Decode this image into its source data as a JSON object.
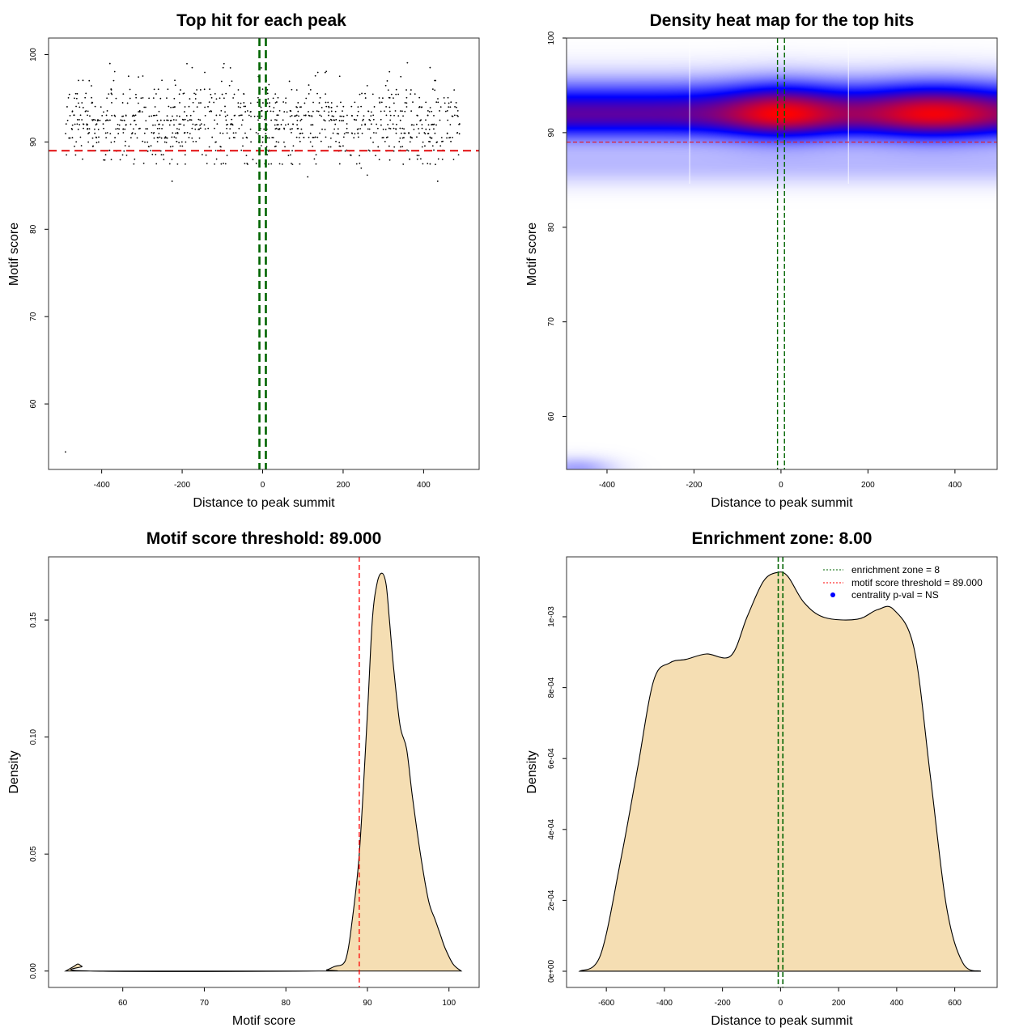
{
  "chart_data": [
    {
      "type": "scatter",
      "title": "Top hit for each peak",
      "xlabel": "Distance to peak summit",
      "ylabel": "Motif score",
      "xlim": [
        -532,
        538
      ],
      "ylim": [
        52.5,
        101.9
      ],
      "xticks": [
        -400,
        -200,
        0,
        200,
        400
      ],
      "yticks": [
        60,
        70,
        80,
        90,
        100
      ],
      "threshold_line": 89,
      "enrichment_lines": [
        -8,
        8
      ],
      "points_generator": {
        "n": 1000,
        "x_range": [
          -490,
          490
        ],
        "y_mean": 92.3,
        "y_sd": 2.4,
        "y_min": 87.6,
        "y_max": 100
      },
      "outliers": [
        [
          -490,
          54.5
        ],
        [
          -225,
          85.5
        ],
        [
          435,
          85.5
        ],
        [
          112,
          86
        ],
        [
          260,
          86.2
        ],
        [
          245,
          87
        ]
      ]
    },
    {
      "type": "heatmap",
      "title": "Density heat map for the top hits",
      "xlabel": "Distance to peak summit",
      "ylabel": "Motif score",
      "xlim": [
        -493,
        497
      ],
      "ylim": [
        54.4,
        100
      ],
      "xticks": [
        -400,
        -200,
        0,
        200,
        400
      ],
      "yticks": [
        60,
        70,
        80,
        90,
        100
      ],
      "threshold_line": 89,
      "enrichment_lines": [
        -8,
        8
      ],
      "density_center_y": 92,
      "hotspots_x": [
        0,
        350
      ],
      "colors": [
        "#ffffff",
        "#0000ff",
        "#ff0000"
      ]
    },
    {
      "type": "area",
      "title": "Motif score threshold: 89.000",
      "xlabel": "Motif score",
      "ylabel": "Density",
      "xlim": [
        50.9,
        103.7
      ],
      "ylim": [
        -0.007,
        0.177
      ],
      "xticks": [
        60,
        70,
        80,
        90,
        100
      ],
      "yticks": [
        "0.00",
        "0.05",
        "0.10",
        "0.15"
      ],
      "threshold_line": 89,
      "x": [
        53,
        54,
        54.5,
        55,
        56,
        84,
        85,
        86,
        87,
        87.5,
        88,
        89,
        90,
        90.6,
        91.2,
        91.8,
        92.3,
        92.7,
        93.2,
        94,
        94.8,
        95.5,
        96.5,
        97.5,
        98.3,
        99,
        99.5,
        100.5,
        101.5
      ],
      "y": [
        0,
        0.002,
        0.003,
        0.002,
        0,
        0,
        0.0005,
        0.002,
        0.003,
        0.007,
        0.018,
        0.05,
        0.11,
        0.15,
        0.166,
        0.17,
        0.165,
        0.15,
        0.13,
        0.105,
        0.095,
        0.075,
        0.05,
        0.03,
        0.022,
        0.015,
        0.01,
        0.003,
        0
      ],
      "fill": "#f5deb3"
    },
    {
      "type": "area",
      "title": "Enrichment zone: 8.00",
      "xlabel": "Distance to peak summit",
      "ylabel": "Density",
      "xlim": [
        -737,
        746
      ],
      "ylim": [
        -4.57e-05,
        0.001169
      ],
      "xticks": [
        -600,
        -400,
        -200,
        0,
        200,
        400,
        600
      ],
      "yticks": [
        0,
        0.0002,
        0.0004,
        0.0006,
        0.0008,
        0.001
      ],
      "ytick_labels": [
        "0e+00",
        "2e-04",
        "4e-04",
        "6e-04",
        "8e-04",
        "1e-03"
      ],
      "enrichment_lines": [
        -8,
        8
      ],
      "x": [
        -692,
        -620,
        -549,
        -493,
        -437,
        -381,
        -325,
        -255,
        -171,
        -115,
        -59,
        -11,
        25,
        81,
        151,
        264,
        334,
        390,
        460,
        516,
        572,
        628,
        690
      ],
      "y": [
        0,
        4.6e-05,
        0.00032,
        0.00057,
        0.00082,
        0.00087,
        0.00088,
        0.000895,
        0.00089,
        0.001,
        0.0011,
        0.001125,
        0.001114,
        0.00104,
        0.000998,
        0.000993,
        0.00102,
        0.00102,
        0.00091,
        0.00055,
        0.00018,
        2.3e-05,
        0
      ],
      "fill": "#f5deb3",
      "legend": {
        "position": "top-right",
        "entries": [
          "enrichment zone = 8",
          "motif score threshold = 89.000",
          "centrality p-val = NS"
        ]
      }
    }
  ]
}
